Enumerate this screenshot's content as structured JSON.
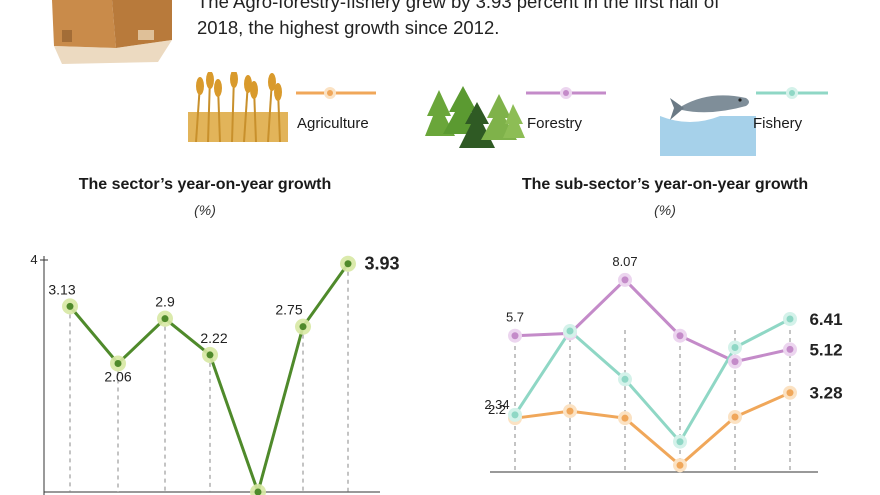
{
  "header": {
    "text_line1": "The Agro-forestry-fishery grew by 3.93 percent in the first half of",
    "text_line2": "2018, the highest growth since 2012."
  },
  "legend": [
    {
      "label": "Agriculture",
      "color": "#f0a75a",
      "icon": "wheat-icon"
    },
    {
      "label": "Forestry",
      "color": "#c48bc9",
      "icon": "pine-trees-icon"
    },
    {
      "label": "Fishery",
      "color": "#8fd7c5",
      "icon": "fish-icon"
    }
  ],
  "colors": {
    "sector_line": "#4f8a2b",
    "sector_marker": "#d7e8a3",
    "agriculture": "#f0a75a",
    "forestry": "#c48bc9",
    "fishery": "#8fd7c5",
    "gridline": "#888888"
  },
  "chart_data": [
    {
      "type": "line",
      "title": "The sector’s year-on-year growth",
      "unit": "(%)",
      "y_tick_labels": [
        "4"
      ],
      "ylim": [
        -0.5,
        4
      ],
      "series": [
        {
          "values": [
            3.13,
            2.06,
            2.9,
            2.22,
            -0.35,
            2.75,
            3.93
          ],
          "labels": [
            "3.13",
            "2.06",
            "2.9",
            "2.22",
            "",
            "2.75",
            "3.93"
          ]
        }
      ]
    },
    {
      "type": "line",
      "title": "The sub-sector’s year-on-year growth",
      "unit": "(%)",
      "ylim": [
        0,
        9
      ],
      "series": [
        {
          "name": "Agriculture",
          "values": [
            2.2,
            2.5,
            2.2,
            0.2,
            2.25,
            3.28
          ],
          "labels": [
            "2.2",
            "",
            "",
            "",
            "",
            "3.28"
          ]
        },
        {
          "name": "Forestry",
          "values": [
            5.7,
            5.8,
            8.07,
            5.7,
            4.6,
            5.12
          ],
          "labels": [
            "5.7",
            "",
            "8.07",
            "",
            "",
            "5.12"
          ]
        },
        {
          "name": "Fishery",
          "values": [
            2.34,
            5.9,
            3.85,
            1.2,
            5.2,
            6.41
          ],
          "labels": [
            "2.34",
            "",
            "",
            "",
            "",
            "6.41"
          ]
        }
      ]
    }
  ]
}
